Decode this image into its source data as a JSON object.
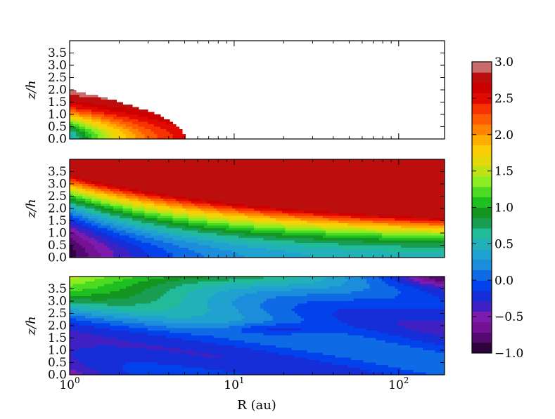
{
  "chart_data": [
    {
      "type": "heatmap",
      "panel": "top",
      "title": "",
      "xlabel": "",
      "ylabel": "z/h",
      "xscale": "log",
      "xlim": [
        1,
        190
      ],
      "ylim": [
        0,
        4
      ],
      "yticks": [
        "0.0",
        "0.5",
        "1.0",
        "1.5",
        "2.0",
        "2.5",
        "3.0",
        "3.5"
      ],
      "x_tick_labels_shown": false,
      "field_description": "filled contours only inside the disk surface z/h ≈ 2.0·sqrt(1 - log10(R)/0.7); value decreases toward the surface edge, above which blank",
      "value_range": [
        0.4,
        3.0
      ]
    },
    {
      "type": "heatmap",
      "panel": "middle",
      "title": "",
      "xlabel": "",
      "ylabel": "z/h",
      "xscale": "log",
      "xlim": [
        1,
        190
      ],
      "ylim": [
        0,
        4
      ],
      "yticks": [
        "0.0",
        "0.5",
        "1.0",
        "1.5",
        "2.0",
        "2.5",
        "3.0",
        "3.5"
      ],
      "x_tick_labels_shown": false,
      "value_range": [
        -1.0,
        2.8
      ]
    },
    {
      "type": "heatmap",
      "panel": "bottom",
      "title": "",
      "xlabel": "R (au)",
      "ylabel": "z/h",
      "xscale": "log",
      "xlim": [
        1,
        190
      ],
      "ylim": [
        0,
        4
      ],
      "xticks": [
        {
          "value": 1,
          "base": "10",
          "exp": "0"
        },
        {
          "value": 10,
          "base": "10",
          "exp": "1"
        },
        {
          "value": 100,
          "base": "10",
          "exp": "2"
        }
      ],
      "yticks": [
        "0.0",
        "0.5",
        "1.0",
        "1.5",
        "2.0",
        "2.5",
        "3.0",
        "3.5"
      ],
      "value_range": [
        -0.8,
        0.8
      ]
    }
  ],
  "colorbar": {
    "vmin": -1.0,
    "vmax": 3.0,
    "levels": 28,
    "tick_labels": [
      "3.0",
      "2.5",
      "2.0",
      "1.5",
      "1.0",
      "0.5",
      "0.0",
      "−0.5",
      "−1.0"
    ],
    "tick_values": [
      3.0,
      2.5,
      2.0,
      1.5,
      1.0,
      0.5,
      0.0,
      -0.5,
      -1.0
    ],
    "colormap": [
      "#1a0022",
      "#5a0a78",
      "#8a1aaa",
      "#2222cc",
      "#0044ee",
      "#1a88dd",
      "#22aacc",
      "#22bb99",
      "#118822",
      "#22cc22",
      "#88ee22",
      "#dddd11",
      "#ffcc00",
      "#ff8800",
      "#ff4400",
      "#dd0000",
      "#bb0000",
      "#cc9999"
    ]
  }
}
